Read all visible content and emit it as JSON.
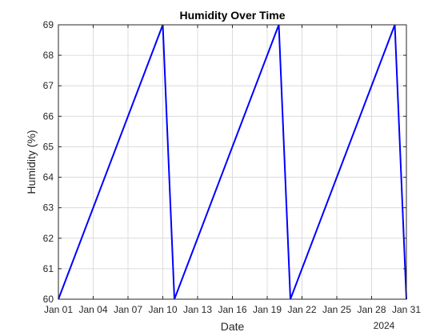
{
  "chart_data": {
    "type": "line",
    "title": "Humidity Over Time",
    "xlabel": "Date",
    "ylabel": "Humidity (%)",
    "x_tick_labels": [
      "Jan 01",
      "Jan 04",
      "Jan 07",
      "Jan 10",
      "Jan 13",
      "Jan 16",
      "Jan 19",
      "Jan 22",
      "Jan 25",
      "Jan 28",
      "Jan 31"
    ],
    "x_secondary_label": "2024",
    "y_ticks": [
      60,
      61,
      62,
      63,
      64,
      65,
      66,
      67,
      68,
      69
    ],
    "ylim": [
      60,
      69
    ],
    "xlim": [
      "2024-01-01",
      "2024-01-31"
    ],
    "grid": true,
    "series": [
      {
        "color": "#0000ff",
        "x": [
          "2024-01-01",
          "2024-01-10",
          "2024-01-11",
          "2024-01-20",
          "2024-01-21",
          "2024-01-30",
          "2024-01-31"
        ],
        "y": [
          60,
          69,
          60,
          69,
          60,
          69,
          60
        ]
      }
    ]
  }
}
